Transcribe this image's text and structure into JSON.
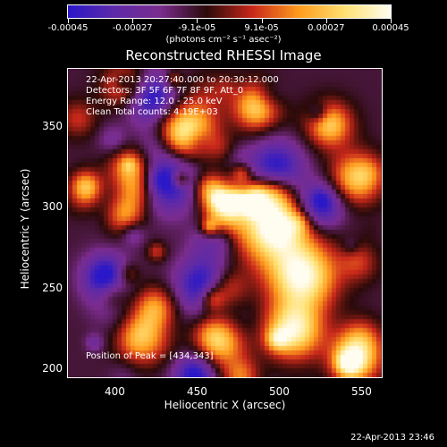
{
  "colorbar": {
    "tick_labels": [
      "-0.00045",
      "-0.00027",
      "-9.1e-05",
      "9.1e-05",
      "0.00027",
      "0.00045"
    ],
    "units": "(photons cm⁻² s⁻¹ asec⁻²)",
    "colors": [
      "#2a18c8",
      "#5e2aa8",
      "#7a2c8f",
      "#2a0a0a",
      "#c8281a",
      "#ff9b1e",
      "#ffe070",
      "#fffdf0"
    ]
  },
  "title": "Reconstructed RHESSI Image",
  "annotations": {
    "time": "22-Apr-2013 20:27:40.000 to 20:30:12.000",
    "detectors": "Detectors: 3F 5F 6F 7F 8F 9F, Att_0",
    "energy": "Energy Range: 12.0 - 25.0 keV",
    "clean": "Clean     Total counts: 4.19E+03",
    "peak": "Position of Peak = [434,343]"
  },
  "axes": {
    "x_title": "Heliocentric X (arcsec)",
    "y_title": "Heliocentric Y (arcsec)",
    "x_ticks": [
      "400",
      "450",
      "500",
      "550"
    ],
    "y_ticks": [
      "350",
      "300",
      "250",
      "200"
    ],
    "x_range": [
      368,
      560
    ],
    "y_range": [
      195,
      385
    ]
  },
  "timestamp": "22-Apr-2013 23:46"
}
